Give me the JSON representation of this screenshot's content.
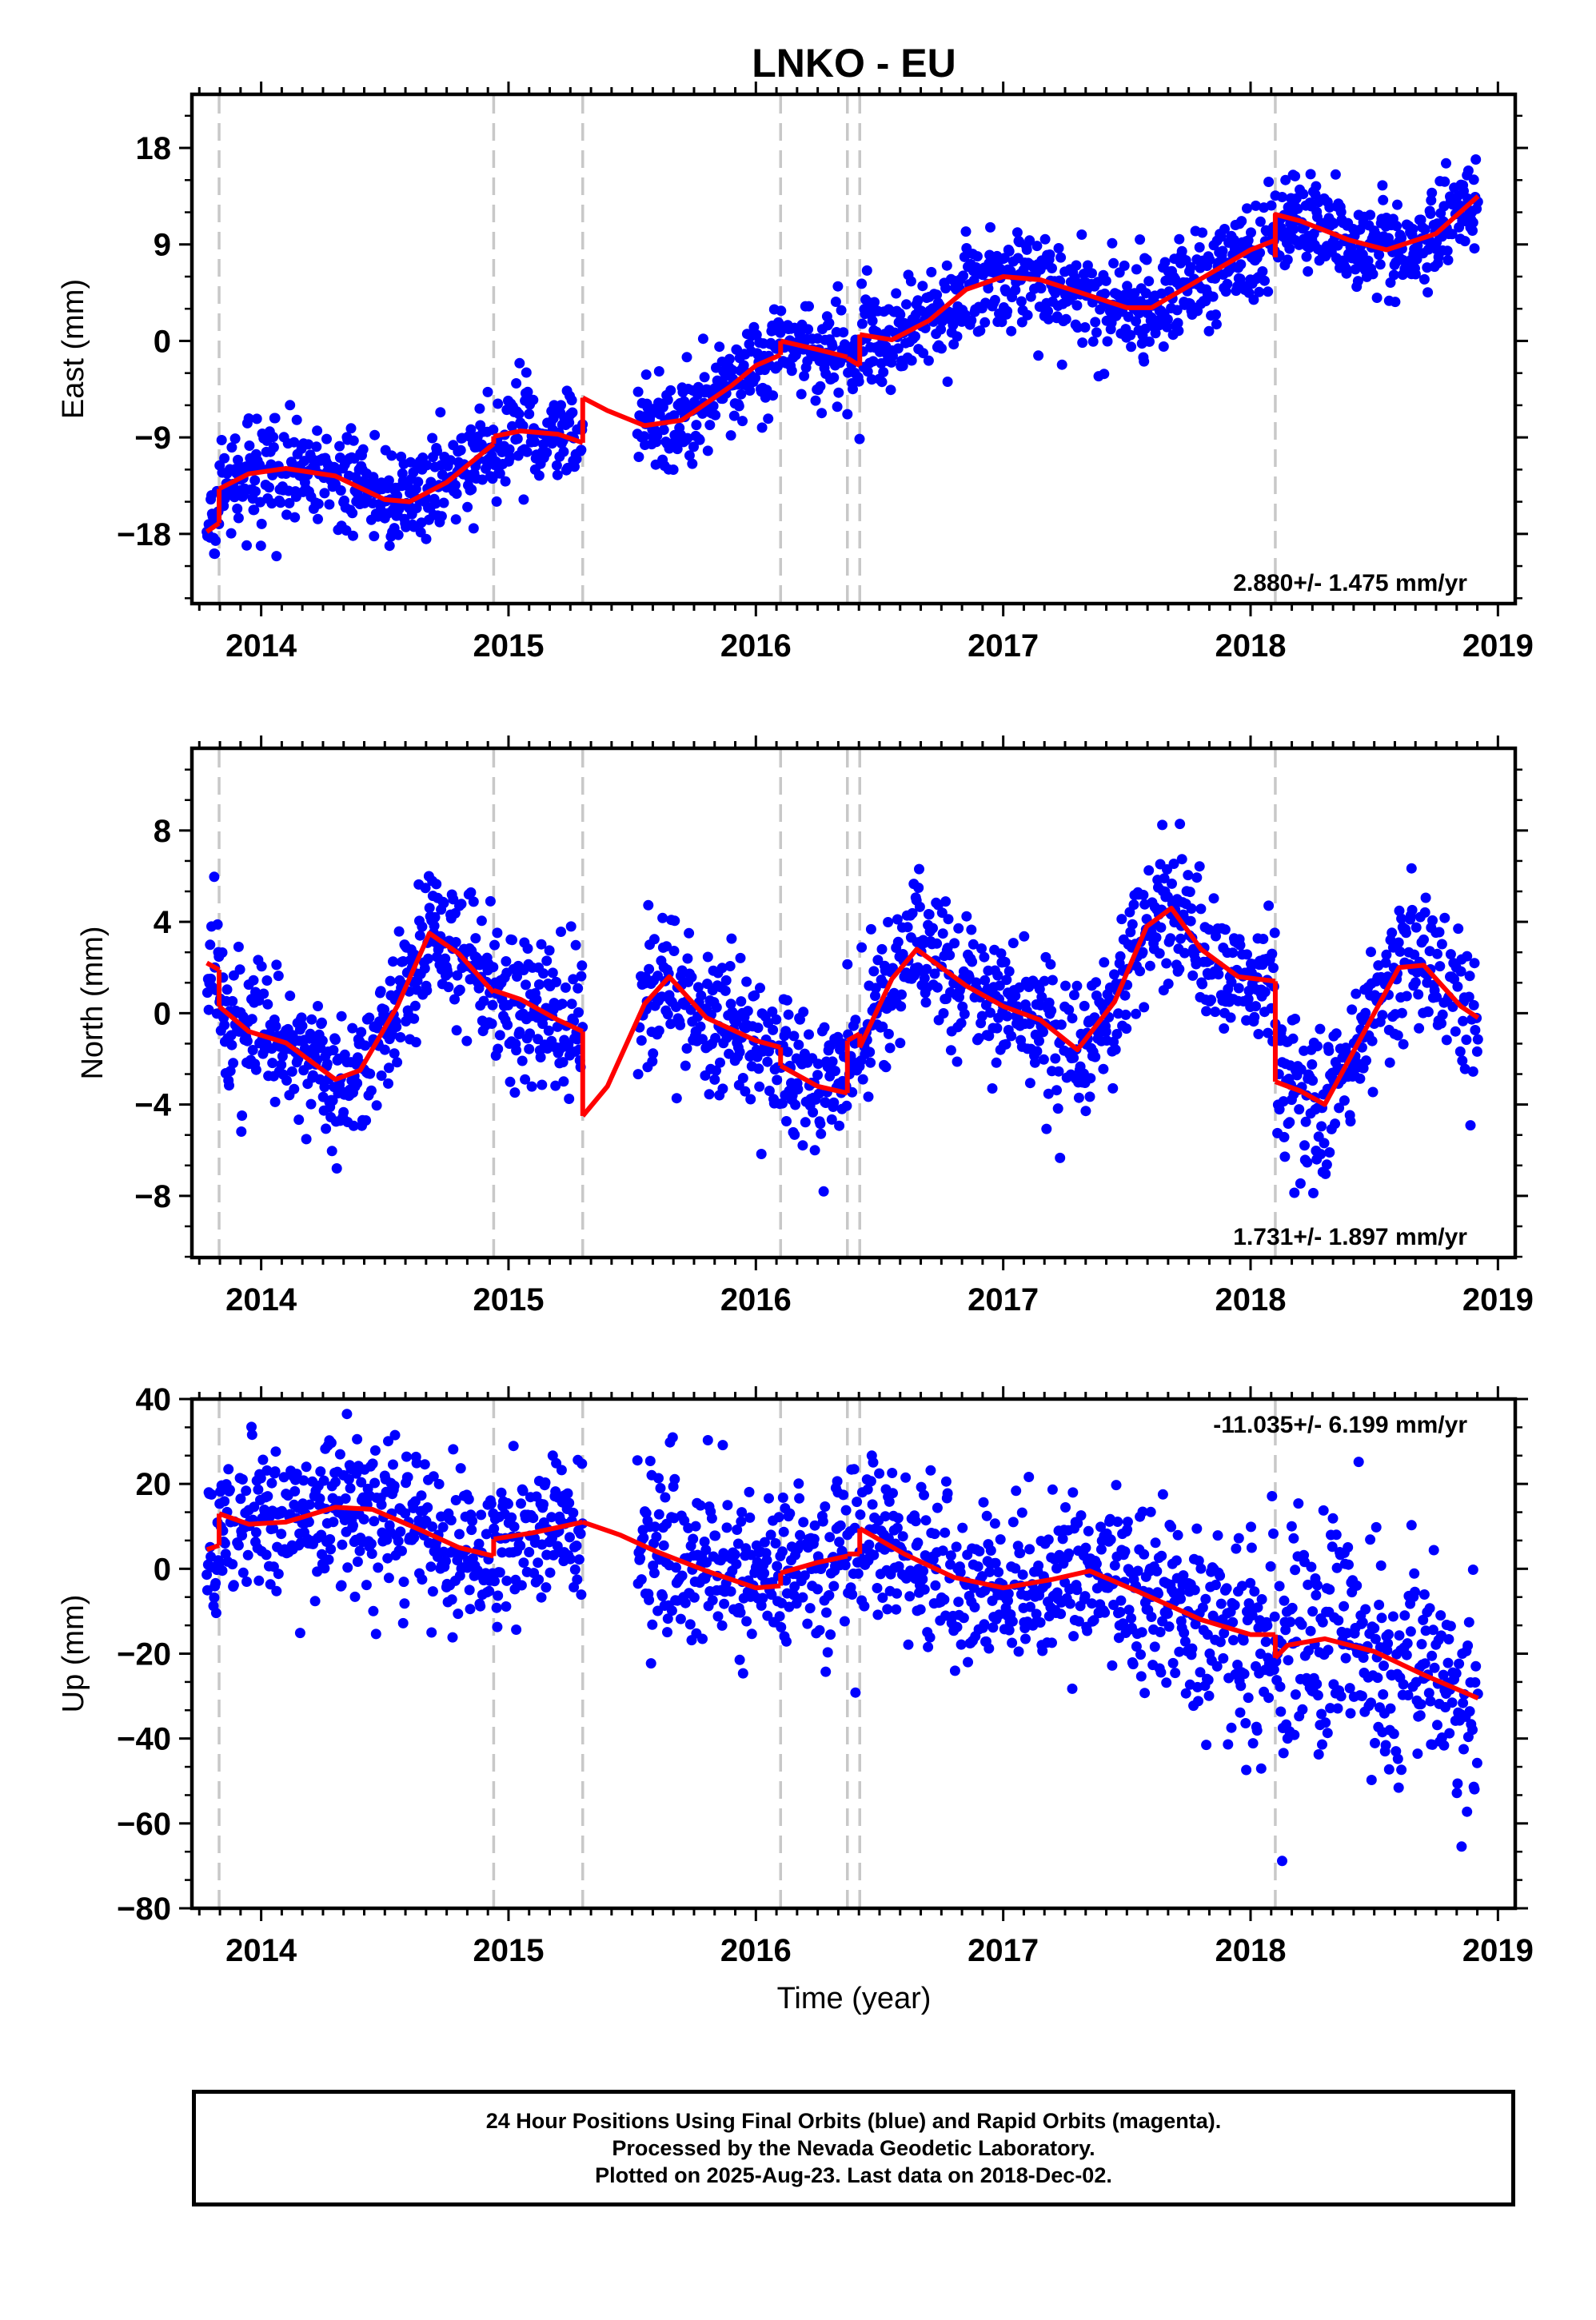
{
  "figure": {
    "title": "LNKO - EU",
    "xlabel": "Time (year)"
  },
  "colors": {
    "points": "#0000ff",
    "model": "#ff0000",
    "events": "#c8c8c8"
  },
  "caption": {
    "line1": "24 Hour Positions Using Final Orbits (blue) and Rapid Orbits (magenta).",
    "line2": "Processed by the Nevada Geodetic Laboratory.",
    "line3": "Plotted on 2025-Aug-23. Last data on 2018-Dec-02."
  },
  "chart_data": [
    {
      "type": "scatter",
      "name": "East",
      "ylabel": "East (mm)",
      "rate": "2.880+/- 1.475 mm/yr",
      "rate_position": "bottom-right",
      "xlim": [
        2013.72,
        2019.07
      ],
      "ylim": [
        -24.5,
        23
      ],
      "yticks": [
        -18,
        -9,
        0,
        9,
        18
      ],
      "xticks": [
        2014,
        2015,
        2016,
        2017,
        2018,
        2019
      ],
      "events": [
        2013.83,
        2014.94,
        2015.3,
        2016.1,
        2016.37,
        2016.42,
        2018.1
      ],
      "model": {
        "segments": [
          [
            [
              2013.78,
              -17.8
            ],
            [
              2013.83,
              -17.0
            ]
          ],
          [
            [
              2013.83,
              -13.8
            ],
            [
              2013.95,
              -12.4
            ],
            [
              2014.1,
              -11.9
            ],
            [
              2014.3,
              -12.6
            ],
            [
              2014.5,
              -14.8
            ],
            [
              2014.6,
              -15.0
            ],
            [
              2014.75,
              -13.2
            ],
            [
              2014.94,
              -9.6
            ]
          ],
          [
            [
              2014.94,
              -8.9
            ],
            [
              2015.05,
              -8.4
            ],
            [
              2015.2,
              -8.7
            ],
            [
              2015.3,
              -9.5
            ]
          ],
          [
            [
              2015.3,
              -5.3
            ],
            [
              2015.4,
              -6.5
            ],
            [
              2015.55,
              -7.9
            ],
            [
              2015.7,
              -7.4
            ],
            [
              2015.9,
              -4.2
            ],
            [
              2016.0,
              -2.3
            ],
            [
              2016.1,
              -1.3
            ]
          ],
          [
            [
              2016.1,
              0.0
            ],
            [
              2016.25,
              -0.8
            ],
            [
              2016.37,
              -1.5
            ]
          ],
          [
            [
              2016.37,
              -1.6
            ],
            [
              2016.42,
              -2.3
            ]
          ],
          [
            [
              2016.42,
              0.6
            ],
            [
              2016.55,
              0.1
            ],
            [
              2016.7,
              1.9
            ],
            [
              2016.85,
              4.8
            ],
            [
              2017.0,
              6.0
            ],
            [
              2017.15,
              5.7
            ],
            [
              2017.3,
              4.6
            ],
            [
              2017.5,
              3.1
            ],
            [
              2017.6,
              3.1
            ],
            [
              2017.8,
              5.8
            ],
            [
              2018.0,
              8.5
            ],
            [
              2018.1,
              9.4
            ]
          ],
          [
            [
              2018.1,
              7.8
            ],
            [
              2018.1,
              11.8
            ],
            [
              2018.2,
              11.2
            ],
            [
              2018.4,
              9.4
            ],
            [
              2018.55,
              8.5
            ],
            [
              2018.75,
              10.0
            ],
            [
              2018.92,
              13.5
            ]
          ]
        ]
      }
    },
    {
      "type": "scatter",
      "name": "North",
      "ylabel": "North (mm)",
      "rate": "1.731+/- 1.897 mm/yr",
      "rate_position": "bottom-right",
      "xlim": [
        2013.72,
        2019.07
      ],
      "ylim": [
        -10.7,
        11.6
      ],
      "yticks": [
        -8,
        -4,
        0,
        4,
        8
      ],
      "xticks": [
        2014,
        2015,
        2016,
        2017,
        2018,
        2019
      ],
      "events": [
        2013.83,
        2014.94,
        2015.3,
        2016.1,
        2016.37,
        2016.42,
        2018.1
      ],
      "model": {
        "segments": [
          [
            [
              2013.78,
              2.2
            ],
            [
              2013.83,
              1.9
            ]
          ],
          [
            [
              2013.83,
              0.3
            ],
            [
              2013.95,
              -0.8
            ],
            [
              2014.1,
              -1.3
            ],
            [
              2014.3,
              -2.9
            ],
            [
              2014.4,
              -2.5
            ],
            [
              2014.55,
              0.3
            ],
            [
              2014.68,
              3.5
            ],
            [
              2014.8,
              2.6
            ],
            [
              2014.94,
              0.9
            ]
          ],
          [
            [
              2014.94,
              1.0
            ],
            [
              2015.05,
              0.6
            ],
            [
              2015.2,
              -0.3
            ],
            [
              2015.3,
              -0.8
            ]
          ],
          [
            [
              2015.3,
              -4.5
            ],
            [
              2015.4,
              -3.2
            ],
            [
              2015.55,
              0.4
            ],
            [
              2015.65,
              1.6
            ],
            [
              2015.8,
              -0.2
            ],
            [
              2016.0,
              -1.2
            ],
            [
              2016.1,
              -1.5
            ]
          ],
          [
            [
              2016.1,
              -2.3
            ],
            [
              2016.25,
              -3.2
            ],
            [
              2016.37,
              -3.5
            ]
          ],
          [
            [
              2016.37,
              -1.2
            ],
            [
              2016.42,
              -0.9
            ]
          ],
          [
            [
              2016.42,
              -1.5
            ],
            [
              2016.55,
              1.5
            ],
            [
              2016.65,
              2.8
            ],
            [
              2016.85,
              1.2
            ],
            [
              2017.0,
              0.3
            ],
            [
              2017.15,
              -0.3
            ],
            [
              2017.3,
              -1.6
            ],
            [
              2017.45,
              0.5
            ],
            [
              2017.58,
              3.8
            ],
            [
              2017.68,
              4.6
            ],
            [
              2017.8,
              2.8
            ],
            [
              2017.95,
              1.6
            ],
            [
              2018.1,
              1.4
            ]
          ],
          [
            [
              2018.1,
              -3.0
            ],
            [
              2018.2,
              -3.4
            ],
            [
              2018.3,
              -4.0
            ],
            [
              2018.45,
              -1.0
            ],
            [
              2018.6,
              2.0
            ],
            [
              2018.7,
              2.1
            ],
            [
              2018.85,
              0.3
            ],
            [
              2018.92,
              -0.2
            ]
          ]
        ]
      }
    },
    {
      "type": "scatter",
      "name": "Up",
      "ylabel": "Up (mm)",
      "rate": "-11.035+/- 6.199 mm/yr",
      "rate_position": "top-right",
      "xlim": [
        2013.72,
        2019.07
      ],
      "ylim": [
        -80,
        40
      ],
      "yticks": [
        -80,
        -60,
        -40,
        -20,
        0,
        20,
        40
      ],
      "xticks": [
        2014,
        2015,
        2016,
        2017,
        2018,
        2019
      ],
      "events": [
        2013.83,
        2014.94,
        2015.3,
        2016.1,
        2016.37,
        2016.42,
        2018.1
      ],
      "model": {
        "segments": [
          [
            [
              2013.78,
              4.5
            ],
            [
              2013.83,
              5.5
            ]
          ],
          [
            [
              2013.83,
              13.0
            ],
            [
              2013.95,
              10.5
            ],
            [
              2014.1,
              11.0
            ],
            [
              2014.3,
              14.5
            ],
            [
              2014.45,
              14.0
            ],
            [
              2014.65,
              9.0
            ],
            [
              2014.8,
              5.0
            ],
            [
              2014.94,
              3.0
            ]
          ],
          [
            [
              2014.94,
              7.0
            ],
            [
              2015.1,
              8.5
            ],
            [
              2015.3,
              11.0
            ]
          ],
          [
            [
              2015.3,
              11.0
            ],
            [
              2015.45,
              8.0
            ],
            [
              2015.6,
              4.0
            ],
            [
              2015.8,
              -0.5
            ],
            [
              2016.0,
              -4.5
            ],
            [
              2016.1,
              -4.0
            ]
          ],
          [
            [
              2016.1,
              -1.0
            ],
            [
              2016.25,
              1.5
            ],
            [
              2016.37,
              3.0
            ]
          ],
          [
            [
              2016.37,
              3.5
            ],
            [
              2016.42,
              3.5
            ]
          ],
          [
            [
              2016.42,
              9.5
            ],
            [
              2016.6,
              3.5
            ],
            [
              2016.8,
              -2.0
            ],
            [
              2017.0,
              -4.5
            ],
            [
              2017.2,
              -2.5
            ],
            [
              2017.35,
              -0.5
            ],
            [
              2017.55,
              -5.5
            ],
            [
              2017.8,
              -12.0
            ],
            [
              2018.0,
              -15.5
            ],
            [
              2018.1,
              -15.5
            ]
          ],
          [
            [
              2018.1,
              -21.0
            ],
            [
              2018.15,
              -18.0
            ],
            [
              2018.3,
              -16.5
            ],
            [
              2018.5,
              -19.5
            ],
            [
              2018.7,
              -25.0
            ],
            [
              2018.92,
              -30.5
            ]
          ]
        ]
      }
    }
  ]
}
